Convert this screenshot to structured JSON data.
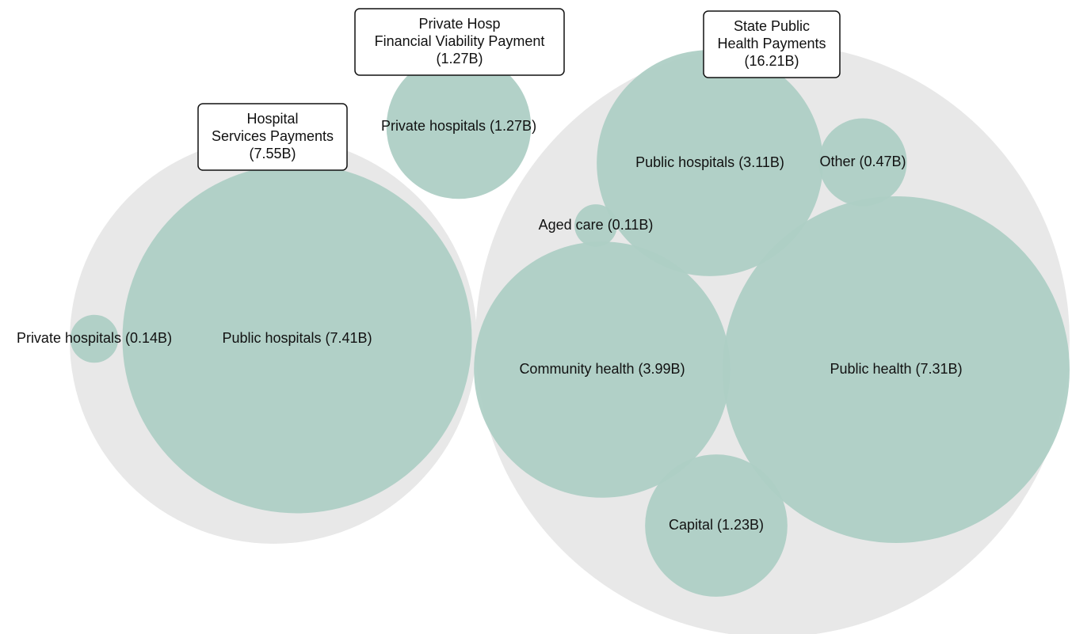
{
  "chart_data": {
    "type": "packed-bubble",
    "color": "#aecfc5",
    "group_color": "#e8e8e8",
    "groups": [
      {
        "label_lines": [
          "Hospital",
          "Services Payments"
        ],
        "value": 7.55,
        "value_label": "(7.55B)",
        "children": [
          {
            "name": "Private hospitals",
            "value": 0.14,
            "value_label": "(0.14B)"
          },
          {
            "name": "Public hospitals",
            "value": 7.41,
            "value_label": "(7.41B)"
          }
        ]
      },
      {
        "label_lines": [
          "Private Hosp",
          "Financial Viability Payment"
        ],
        "value": 1.27,
        "value_label": "(1.27B)",
        "children": [
          {
            "name": "Private hospitals",
            "value": 1.27,
            "value_label": "(1.27B)"
          }
        ]
      },
      {
        "label_lines": [
          "State Public",
          "Health Payments"
        ],
        "value": 16.21,
        "value_label": "(16.21B)",
        "children": [
          {
            "name": "Public hospitals",
            "value": 3.11,
            "value_label": "(3.11B)"
          },
          {
            "name": "Other",
            "value": 0.47,
            "value_label": "(0.47B)"
          },
          {
            "name": "Aged care",
            "value": 0.11,
            "value_label": "(0.11B)"
          },
          {
            "name": "Community health",
            "value": 3.99,
            "value_label": "(3.99B)"
          },
          {
            "name": "Public health",
            "value": 7.31,
            "value_label": "(7.31B)"
          },
          {
            "name": "Capital",
            "value": 1.23,
            "value_label": "(1.23B)"
          }
        ]
      }
    ]
  }
}
